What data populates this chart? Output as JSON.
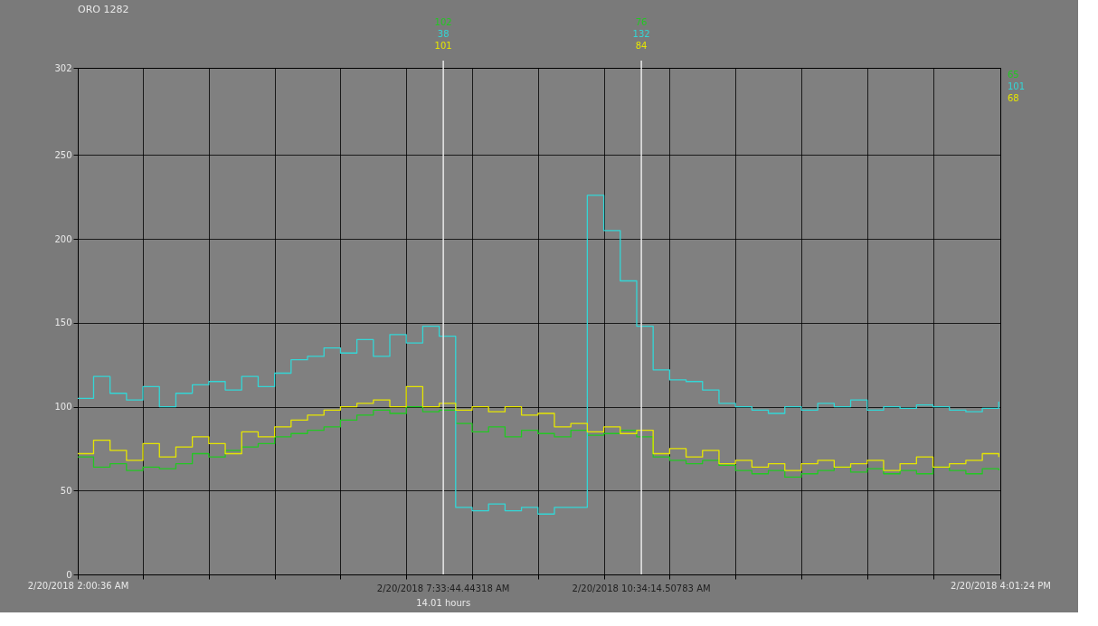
{
  "chart_data": {
    "type": "step",
    "title": "ORO 1282",
    "x": [
      "2018-02-20T02:00:36",
      "2018-02-20T02:15",
      "2018-02-20T02:30",
      "2018-02-20T02:45",
      "2018-02-20T03:00",
      "2018-02-20T03:15",
      "2018-02-20T03:30",
      "2018-02-20T03:45",
      "2018-02-20T04:00",
      "2018-02-20T04:15",
      "2018-02-20T04:30",
      "2018-02-20T04:45",
      "2018-02-20T05:00",
      "2018-02-20T05:15",
      "2018-02-20T05:30",
      "2018-02-20T05:45",
      "2018-02-20T06:00",
      "2018-02-20T06:15",
      "2018-02-20T06:30",
      "2018-02-20T06:45",
      "2018-02-20T07:00",
      "2018-02-20T07:15",
      "2018-02-20T07:30",
      "2018-02-20T07:45",
      "2018-02-20T08:00",
      "2018-02-20T08:15",
      "2018-02-20T08:30",
      "2018-02-20T08:45",
      "2018-02-20T09:00",
      "2018-02-20T09:15",
      "2018-02-20T09:30",
      "2018-02-20T09:45",
      "2018-02-20T10:00",
      "2018-02-20T10:15",
      "2018-02-20T10:30",
      "2018-02-20T10:45",
      "2018-02-20T11:00",
      "2018-02-20T11:15",
      "2018-02-20T11:30",
      "2018-02-20T11:45",
      "2018-02-20T12:00",
      "2018-02-20T12:15",
      "2018-02-20T12:30",
      "2018-02-20T12:45",
      "2018-02-20T13:00",
      "2018-02-20T13:15",
      "2018-02-20T13:30",
      "2018-02-20T13:45",
      "2018-02-20T14:00",
      "2018-02-20T14:15",
      "2018-02-20T14:30",
      "2018-02-20T14:45",
      "2018-02-20T15:00",
      "2018-02-20T15:15",
      "2018-02-20T15:30",
      "2018-02-20T15:45",
      "2018-02-20T16:00"
    ],
    "series": [
      {
        "color": "#22c822",
        "values": [
          70,
          64,
          66,
          62,
          64,
          63,
          66,
          72,
          70,
          74,
          76,
          78,
          82,
          84,
          86,
          88,
          92,
          95,
          98,
          96,
          100,
          97,
          98,
          90,
          85,
          88,
          82,
          86,
          84,
          82,
          86,
          83,
          84,
          86,
          82,
          70,
          68,
          66,
          68,
          65,
          62,
          60,
          62,
          58,
          60,
          62,
          64,
          61,
          63,
          60,
          62,
          60,
          64,
          62,
          60,
          63,
          62
        ]
      },
      {
        "color": "#33d6d6",
        "values": [
          105,
          118,
          108,
          104,
          112,
          100,
          108,
          113,
          115,
          110,
          118,
          112,
          120,
          128,
          130,
          135,
          132,
          140,
          130,
          143,
          138,
          148,
          142,
          40,
          38,
          42,
          38,
          40,
          36,
          40,
          40,
          226,
          205,
          175,
          148,
          122,
          116,
          115,
          110,
          102,
          100,
          98,
          96,
          100,
          98,
          102,
          100,
          104,
          98,
          100,
          99,
          101,
          100,
          98,
          97,
          99,
          103
        ]
      },
      {
        "color": "#e6e600",
        "values": [
          72,
          80,
          74,
          68,
          78,
          70,
          76,
          82,
          78,
          72,
          85,
          82,
          88,
          92,
          95,
          98,
          100,
          102,
          104,
          100,
          112,
          100,
          102,
          98,
          100,
          97,
          100,
          95,
          96,
          88,
          90,
          85,
          88,
          84,
          86,
          72,
          75,
          70,
          74,
          66,
          68,
          64,
          66,
          62,
          66,
          68,
          64,
          66,
          68,
          62,
          66,
          70,
          64,
          66,
          68,
          72,
          70
        ]
      }
    ],
    "xlim": [
      "2018-02-20T02:00:36",
      "2018-02-20T16:01:24"
    ],
    "xticks": [
      {
        "value": "2018-02-20T02:00:36",
        "label": "2/20/2018 2:00:36 AM"
      },
      {
        "value": "2018-02-20T03:00",
        "label": null
      },
      {
        "value": "2018-02-20T04:00",
        "label": null
      },
      {
        "value": "2018-02-20T05:00",
        "label": null
      },
      {
        "value": "2018-02-20T06:00",
        "label": null
      },
      {
        "value": "2018-02-20T07:00",
        "label": null
      },
      {
        "value": "2018-02-20T08:00",
        "label": null
      },
      {
        "value": "2018-02-20T09:00",
        "label": null
      },
      {
        "value": "2018-02-20T10:00",
        "label": null
      },
      {
        "value": "2018-02-20T11:00",
        "label": null
      },
      {
        "value": "2018-02-20T12:00",
        "label": null
      },
      {
        "value": "2018-02-20T13:00",
        "label": null
      },
      {
        "value": "2018-02-20T14:00",
        "label": null
      },
      {
        "value": "2018-02-20T15:00",
        "label": null
      },
      {
        "value": "2018-02-20T16:01:24",
        "label": "2/20/2018 4:01:24 PM"
      }
    ],
    "ylim": [
      0,
      302
    ],
    "yticks": [
      0,
      50,
      100,
      150,
      200,
      250,
      302
    ],
    "ref_lines": [
      {
        "axis": "x",
        "value": "2018-02-20T07:33:44",
        "label": "2/20/2018 7:33:44.44318 AM",
        "color": "#e8e8e8"
      },
      {
        "axis": "x",
        "value": "2018-02-20T10:34:14",
        "label": "2/20/2018 10:34:14.50783 AM",
        "color": "#e8e8e8"
      }
    ],
    "annotations": [
      "14.01 hours",
      "102",
      "38",
      "101",
      "76",
      "132",
      "84",
      "65",
      "101",
      "68"
    ],
    "grid": true
  }
}
